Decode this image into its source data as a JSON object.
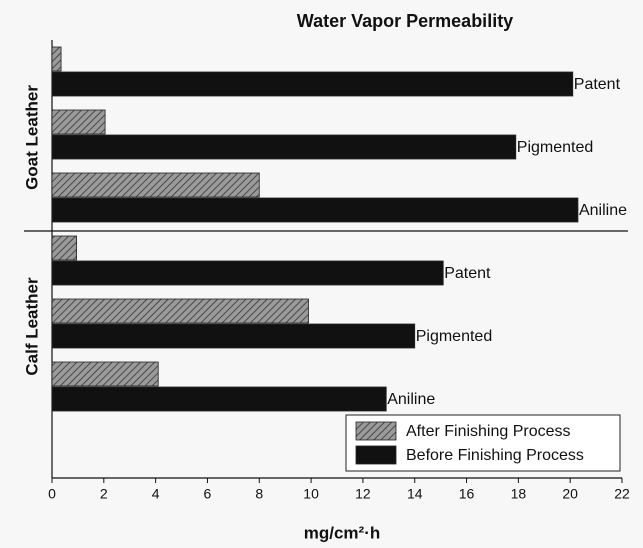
{
  "chart_data": {
    "type": "hbar",
    "title": "Water Vapor Permeability",
    "xlabel": "mg/cm²·h",
    "groups": [
      {
        "label": "Goat Leather",
        "categories": [
          "Patent",
          "Pigmented",
          "Aniline"
        ]
      },
      {
        "label": "Calf Leather",
        "categories": [
          "Patent",
          "Pigmented",
          "Aniline"
        ]
      }
    ],
    "series": [
      {
        "name": "After Finishing Process",
        "color": "#888888",
        "pattern": "hatch",
        "values": [
          0.35,
          2.05,
          8.0,
          0.95,
          9.9,
          4.1
        ]
      },
      {
        "name": "Before Finishing Process",
        "color": "#111111",
        "pattern": "solid",
        "values": [
          20.1,
          17.9,
          20.3,
          15.1,
          14.0,
          12.9
        ]
      }
    ],
    "xlim": [
      0,
      22
    ],
    "xticks": [
      0,
      2,
      4,
      6,
      8,
      10,
      12,
      14,
      16,
      18,
      20,
      22
    ],
    "legend": "lower right"
  }
}
